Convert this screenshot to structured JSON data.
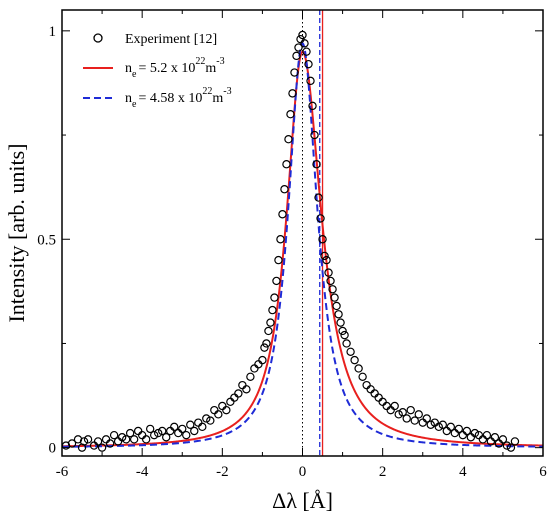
{
  "chart_data": {
    "type": "scatter",
    "xlabel": "Δλ [Å]",
    "ylabel": "Intensity [arb. units]",
    "xlim": [
      -6,
      6
    ],
    "ylim": [
      -0.02,
      1.05
    ],
    "xticks": [
      -6,
      -4,
      -2,
      0,
      2,
      4,
      6
    ],
    "yticks": [
      0,
      0.5,
      1
    ],
    "ytick_labels": [
      "0",
      "0.5",
      "1"
    ],
    "legend_position": "top-left",
    "vertical_lines": [
      {
        "x": 0,
        "style": "dotted",
        "color": "#000000"
      },
      {
        "x": 0.5,
        "style": "solid",
        "color": "#e8201e"
      },
      {
        "x": 0.43,
        "style": "dashed",
        "color": "#1f2bd6"
      }
    ],
    "series": [
      {
        "name": "Experiment [12]",
        "style": "markers",
        "color": "#000000",
        "x": [
          -5.9,
          -5.75,
          -5.6,
          -5.5,
          -5.45,
          -5.35,
          -5.2,
          -5.1,
          -5.0,
          -4.9,
          -4.8,
          -4.7,
          -4.6,
          -4.5,
          -4.4,
          -4.3,
          -4.2,
          -4.1,
          -4.0,
          -3.9,
          -3.8,
          -3.7,
          -3.6,
          -3.5,
          -3.4,
          -3.3,
          -3.2,
          -3.1,
          -3.0,
          -2.9,
          -2.8,
          -2.7,
          -2.6,
          -2.5,
          -2.4,
          -2.3,
          -2.2,
          -2.1,
          -2.0,
          -1.9,
          -1.8,
          -1.7,
          -1.6,
          -1.5,
          -1.4,
          -1.3,
          -1.2,
          -1.1,
          -1.0,
          -0.95,
          -0.9,
          -0.85,
          -0.8,
          -0.75,
          -0.7,
          -0.65,
          -0.6,
          -0.55,
          -0.5,
          -0.45,
          -0.4,
          -0.35,
          -0.3,
          -0.25,
          -0.2,
          -0.15,
          -0.1,
          -0.05,
          0.0,
          0.05,
          0.1,
          0.15,
          0.2,
          0.25,
          0.3,
          0.35,
          0.4,
          0.45,
          0.5,
          0.55,
          0.6,
          0.65,
          0.7,
          0.75,
          0.8,
          0.85,
          0.9,
          0.95,
          1.0,
          1.05,
          1.1,
          1.2,
          1.3,
          1.4,
          1.5,
          1.6,
          1.7,
          1.8,
          1.9,
          2.0,
          2.1,
          2.2,
          2.3,
          2.4,
          2.5,
          2.6,
          2.7,
          2.8,
          2.9,
          3.0,
          3.1,
          3.2,
          3.3,
          3.4,
          3.5,
          3.6,
          3.7,
          3.8,
          3.9,
          4.0,
          4.1,
          4.2,
          4.3,
          4.4,
          4.5,
          4.6,
          4.7,
          4.8,
          4.9,
          5.0,
          5.1,
          5.2,
          5.3
        ],
        "y": [
          0.005,
          0.01,
          0.02,
          0.0,
          0.015,
          0.02,
          0.005,
          0.015,
          0.0,
          0.02,
          0.01,
          0.03,
          0.015,
          0.025,
          0.02,
          0.035,
          0.02,
          0.04,
          0.03,
          0.02,
          0.045,
          0.03,
          0.035,
          0.04,
          0.025,
          0.04,
          0.05,
          0.035,
          0.045,
          0.03,
          0.055,
          0.04,
          0.06,
          0.05,
          0.07,
          0.065,
          0.09,
          0.08,
          0.1,
          0.09,
          0.11,
          0.12,
          0.13,
          0.15,
          0.14,
          0.17,
          0.19,
          0.2,
          0.21,
          0.24,
          0.25,
          0.28,
          0.3,
          0.33,
          0.36,
          0.4,
          0.45,
          0.5,
          0.56,
          0.62,
          0.68,
          0.74,
          0.8,
          0.85,
          0.9,
          0.94,
          0.96,
          0.98,
          0.99,
          0.97,
          0.95,
          0.92,
          0.88,
          0.82,
          0.75,
          0.68,
          0.6,
          0.55,
          0.5,
          0.46,
          0.45,
          0.42,
          0.4,
          0.38,
          0.36,
          0.34,
          0.32,
          0.3,
          0.28,
          0.27,
          0.25,
          0.23,
          0.21,
          0.19,
          0.17,
          0.15,
          0.14,
          0.13,
          0.12,
          0.11,
          0.1,
          0.09,
          0.1,
          0.08,
          0.085,
          0.07,
          0.09,
          0.065,
          0.08,
          0.06,
          0.07,
          0.055,
          0.06,
          0.05,
          0.055,
          0.04,
          0.05,
          0.035,
          0.045,
          0.03,
          0.04,
          0.025,
          0.035,
          0.03,
          0.02,
          0.03,
          0.015,
          0.025,
          0.01,
          0.02,
          0.005,
          0.0,
          0.015
        ]
      },
      {
        "name": "n_e = 5.2 x 10^22 m^-3",
        "style": "solid",
        "color": "#e8201e",
        "model": {
          "center": 0.0,
          "amplitude": 0.95,
          "hwhm_left": 0.52,
          "hwhm_right": 0.62,
          "exponent": 1.15,
          "baseline": 0.0
        }
      },
      {
        "name": "n_e = 4.58 x 10^22 m^-3",
        "style": "dashed",
        "color": "#1f2bd6",
        "model": {
          "center": 0.0,
          "amplitude": 0.97,
          "hwhm_left": 0.48,
          "hwhm_right": 0.5,
          "exponent": 1.2,
          "baseline": 0.0
        }
      }
    ],
    "legend": {
      "entries": [
        {
          "marker": "circle",
          "text": "Experiment [12]"
        },
        {
          "marker": "line-solid",
          "prefix": "n",
          "sub": "e",
          "mid": "= 5.2 x 10",
          "sup": "22",
          "unit": "m",
          "unit_sup": "-3"
        },
        {
          "marker": "line-dashed",
          "prefix": "n",
          "sub": "e",
          "mid": "= 4.58 x 10",
          "sup": "22",
          "unit": "m",
          "unit_sup": "-3"
        }
      ]
    }
  }
}
